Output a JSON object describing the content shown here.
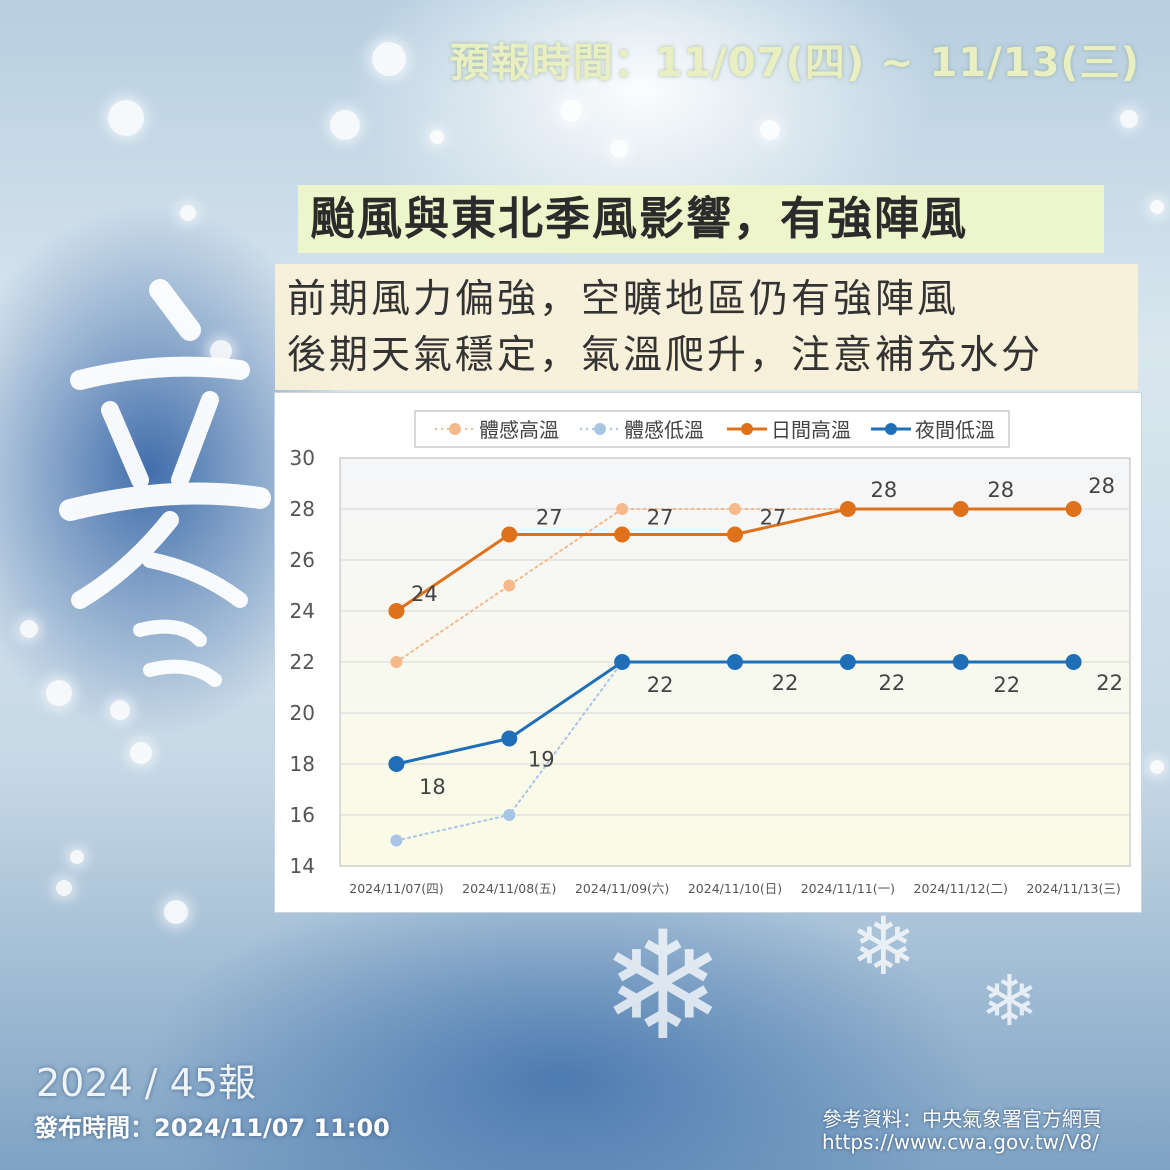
{
  "header": {
    "forecast_period": "預報時間：11/07(四) ~ 11/13(三)",
    "headline": "颱風與東北季風影響，有強陣風",
    "description_lines": [
      "前期風力偏強，空曠地區仍有強陣風",
      "後期天氣穩定，氣溫爬升，注意補充水分"
    ]
  },
  "footer": {
    "issue": "2024 / 45報",
    "publish_time": "發布時間：2024/11/07 11:00",
    "reference_label": "參考資料：中央氣象署官方網頁",
    "reference_url": "https://www.cwa.gov.tw/V8/"
  },
  "colors": {
    "feels_high": "#f5b98c",
    "feels_low": "#a9c5e6",
    "day_high": "#e0711b",
    "night_low": "#1f6fb8"
  },
  "chart_data": {
    "type": "line",
    "categories": [
      "2024/11/07(四)",
      "2024/11/08(五)",
      "2024/11/09(六)",
      "2024/11/10(日)",
      "2024/11/11(一)",
      "2024/11/12(二)",
      "2024/11/13(三)"
    ],
    "ylim": [
      14,
      30
    ],
    "yticks": [
      14,
      16,
      18,
      20,
      22,
      24,
      26,
      28,
      30
    ],
    "grid": true,
    "legend_position": "top",
    "series": [
      {
        "name": "體感高溫",
        "values": [
          22,
          25,
          28,
          28,
          28,
          28,
          28
        ],
        "style": "dotted",
        "color": "#f5b98c",
        "labels": false
      },
      {
        "name": "體感低溫",
        "values": [
          15,
          16,
          22,
          22,
          22,
          22,
          22
        ],
        "style": "dotted",
        "color": "#a9c5e6",
        "labels": false
      },
      {
        "name": "日間高溫",
        "values": [
          24,
          27,
          27,
          27,
          28,
          28,
          28
        ],
        "style": "solid",
        "color": "#e0711b",
        "labels": true
      },
      {
        "name": "夜間低溫",
        "values": [
          18,
          19,
          22,
          22,
          22,
          22,
          22
        ],
        "style": "solid",
        "color": "#1f6fb8",
        "labels": true
      }
    ]
  }
}
